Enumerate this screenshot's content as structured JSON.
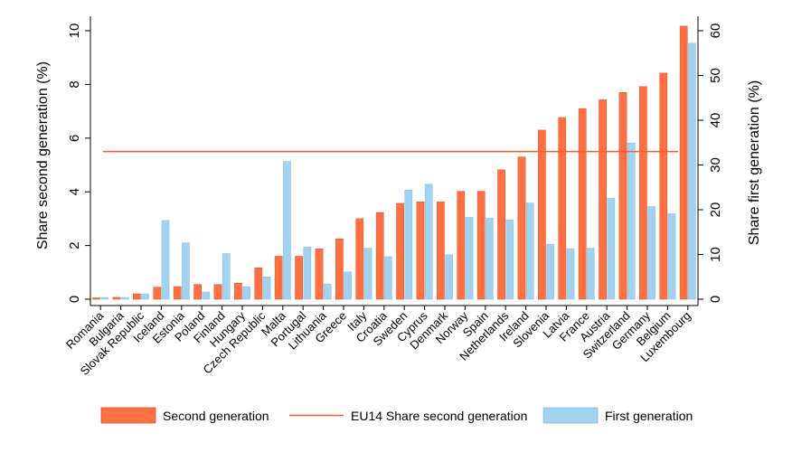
{
  "chart_data": {
    "type": "bar",
    "title": "",
    "categories": [
      "Romania",
      "Bulgaria",
      "Slovak Republic",
      "Iceland",
      "Estonia",
      "Poland",
      "Finland",
      "Hungary",
      "Czech Republic",
      "Malta",
      "Portugal",
      "Lithuania",
      "Greece",
      "Italy",
      "Croatia",
      "Sweden",
      "Cyprus",
      "Denmark",
      "Norway",
      "Spain",
      "Netherlands",
      "Ireland",
      "Slovenia",
      "Latvia",
      "France",
      "Austria",
      "Switzerland",
      "Germany",
      "Belgium",
      "Luxembourg"
    ],
    "series": [
      {
        "name": "Second generation",
        "axis": "left",
        "color": "#ff7043",
        "values": [
          0.05,
          0.07,
          0.2,
          0.45,
          0.47,
          0.55,
          0.55,
          0.6,
          1.17,
          1.6,
          1.6,
          1.88,
          2.25,
          3.0,
          3.23,
          3.57,
          3.63,
          3.63,
          4.02,
          4.02,
          4.82,
          5.3,
          6.3,
          6.77,
          7.1,
          7.43,
          7.7,
          7.92,
          8.42,
          10.17
        ]
      },
      {
        "name": "First generation",
        "axis": "right",
        "color": "#a3d2f0",
        "values": [
          0.4,
          0.4,
          1.2,
          17.6,
          12.6,
          1.6,
          10.2,
          2.8,
          5.0,
          30.8,
          11.7,
          3.4,
          6.1,
          11.4,
          9.5,
          24.4,
          25.7,
          9.9,
          18.3,
          18.1,
          17.7,
          21.5,
          12.3,
          11.3,
          11.4,
          22.6,
          34.9,
          20.7,
          19.1,
          57.2
        ]
      }
    ],
    "reference_line": {
      "name": "EU14 Share second generation",
      "value": 5.5,
      "color": "#ff5a2a"
    },
    "ylabel": "Share second generation (%)",
    "ylabel_right": "Share first generation (%)",
    "ylim": [
      0,
      10.5
    ],
    "ylim_right": [
      0,
      63
    ],
    "yticks": [
      0,
      2,
      4,
      6,
      8,
      10
    ],
    "yticks_right": [
      0,
      10,
      20,
      30,
      40,
      50,
      60
    ],
    "legend_position": "bottom",
    "legend": [
      "Second generation",
      "EU14 Share second generation",
      "First generation"
    ],
    "grid": false
  }
}
